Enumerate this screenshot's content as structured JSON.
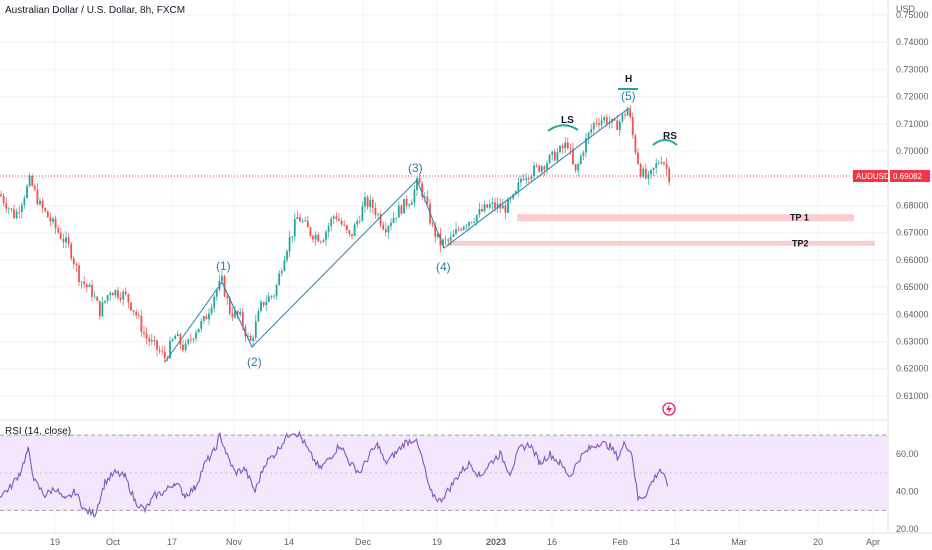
{
  "chart_data": {
    "type": "candlestick",
    "title": "Australian Dollar / U.S. Dollar, 8h, FXCM",
    "symbol": "AUDUSD",
    "last_price": "0.69082",
    "currency": "USD",
    "price_axis": {
      "ticks": [
        "0.75000",
        "0.74000",
        "0.73000",
        "0.72000",
        "0.71000",
        "0.70000",
        "0.69000",
        "0.68000",
        "0.67000",
        "0.66000",
        "0.65000",
        "0.64000",
        "0.63000",
        "0.62000",
        "0.61000"
      ],
      "range": [
        0.603,
        0.7555
      ]
    },
    "time_axis": {
      "ticks": [
        "19",
        "Oct",
        "17",
        "Nov",
        "14",
        "Dec",
        "19",
        "2023",
        "16",
        "Feb",
        "14",
        "Mar",
        "20",
        "Apr"
      ]
    },
    "close_path": [
      [
        0,
        0.684
      ],
      [
        15,
        0.676
      ],
      [
        30,
        0.689
      ],
      [
        40,
        0.68
      ],
      [
        55,
        0.672
      ],
      [
        70,
        0.664
      ],
      [
        80,
        0.653
      ],
      [
        92,
        0.648
      ],
      [
        100,
        0.641
      ],
      [
        110,
        0.649
      ],
      [
        125,
        0.647
      ],
      [
        135,
        0.641
      ],
      [
        145,
        0.632
      ],
      [
        155,
        0.628
      ],
      [
        165,
        0.624
      ],
      [
        175,
        0.632
      ],
      [
        185,
        0.627
      ],
      [
        195,
        0.634
      ],
      [
        205,
        0.638
      ],
      [
        215,
        0.648
      ],
      [
        222,
        0.652
      ],
      [
        230,
        0.641
      ],
      [
        240,
        0.639
      ],
      [
        250,
        0.629
      ],
      [
        262,
        0.644
      ],
      [
        275,
        0.648
      ],
      [
        285,
        0.663
      ],
      [
        298,
        0.676
      ],
      [
        310,
        0.67
      ],
      [
        322,
        0.668
      ],
      [
        335,
        0.677
      ],
      [
        350,
        0.668
      ],
      [
        365,
        0.681
      ],
      [
        372,
        0.68
      ],
      [
        385,
        0.672
      ],
      [
        398,
        0.678
      ],
      [
        412,
        0.683
      ],
      [
        418,
        0.689
      ],
      [
        425,
        0.682
      ],
      [
        432,
        0.672
      ],
      [
        440,
        0.666
      ],
      [
        450,
        0.667
      ],
      [
        462,
        0.673
      ],
      [
        475,
        0.676
      ],
      [
        490,
        0.68
      ],
      [
        505,
        0.679
      ],
      [
        515,
        0.683
      ],
      [
        522,
        0.691
      ],
      [
        535,
        0.693
      ],
      [
        550,
        0.697
      ],
      [
        560,
        0.7
      ],
      [
        568,
        0.703
      ],
      [
        575,
        0.691
      ],
      [
        585,
        0.703
      ],
      [
        595,
        0.711
      ],
      [
        605,
        0.712
      ],
      [
        615,
        0.709
      ],
      [
        622,
        0.712
      ],
      [
        628,
        0.716
      ],
      [
        634,
        0.703
      ],
      [
        640,
        0.693
      ],
      [
        648,
        0.689
      ],
      [
        655,
        0.694
      ],
      [
        662,
        0.698
      ],
      [
        670,
        0.69
      ]
    ],
    "rsi": {
      "label": "RSI (14, close)",
      "ticks": [
        "60.00",
        "40.00",
        "20.00"
      ],
      "range": [
        18,
        78
      ],
      "band": [
        30,
        70
      ],
      "points": [
        [
          0,
          38
        ],
        [
          10,
          42
        ],
        [
          20,
          50
        ],
        [
          28,
          62
        ],
        [
          35,
          45
        ],
        [
          45,
          38
        ],
        [
          55,
          42
        ],
        [
          65,
          35
        ],
        [
          75,
          40
        ],
        [
          85,
          30
        ],
        [
          95,
          28
        ],
        [
          105,
          45
        ],
        [
          115,
          50
        ],
        [
          125,
          48
        ],
        [
          135,
          35
        ],
        [
          145,
          30
        ],
        [
          155,
          38
        ],
        [
          165,
          40
        ],
        [
          175,
          45
        ],
        [
          185,
          38
        ],
        [
          195,
          42
        ],
        [
          205,
          55
        ],
        [
          215,
          62
        ],
        [
          220,
          70
        ],
        [
          228,
          58
        ],
        [
          235,
          50
        ],
        [
          245,
          52
        ],
        [
          255,
          40
        ],
        [
          265,
          55
        ],
        [
          275,
          60
        ],
        [
          285,
          68
        ],
        [
          292,
          72
        ],
        [
          300,
          70
        ],
        [
          310,
          60
        ],
        [
          320,
          52
        ],
        [
          330,
          58
        ],
        [
          340,
          65
        ],
        [
          350,
          55
        ],
        [
          360,
          50
        ],
        [
          370,
          60
        ],
        [
          378,
          65
        ],
        [
          385,
          55
        ],
        [
          395,
          60
        ],
        [
          405,
          66
        ],
        [
          415,
          68
        ],
        [
          422,
          58
        ],
        [
          430,
          40
        ],
        [
          440,
          35
        ],
        [
          450,
          42
        ],
        [
          460,
          50
        ],
        [
          470,
          55
        ],
        [
          480,
          48
        ],
        [
          490,
          55
        ],
        [
          500,
          60
        ],
        [
          510,
          50
        ],
        [
          520,
          63
        ],
        [
          530,
          65
        ],
        [
          540,
          55
        ],
        [
          550,
          60
        ],
        [
          560,
          55
        ],
        [
          570,
          48
        ],
        [
          580,
          58
        ],
        [
          590,
          63
        ],
        [
          600,
          66
        ],
        [
          610,
          64
        ],
        [
          618,
          58
        ],
        [
          625,
          66
        ],
        [
          632,
          60
        ],
        [
          638,
          36
        ],
        [
          645,
          38
        ],
        [
          652,
          45
        ],
        [
          660,
          52
        ],
        [
          668,
          43
        ]
      ]
    },
    "annotations": {
      "waves": [
        "(1)",
        "(2)",
        "(3)",
        "(4)",
        "(5)"
      ],
      "pattern": [
        "LS",
        "H",
        "RS"
      ],
      "targets": [
        {
          "label": "TP 1",
          "low": 0.6742,
          "high": 0.6768
        },
        {
          "label": "TP2",
          "low": 0.6652,
          "high": 0.667
        }
      ]
    },
    "colors": {
      "up": "#26a69a",
      "down": "#ef5350",
      "wave_line": "#2a7fa8",
      "rsi_line": "#7e57c2",
      "rsi_band": "#f3e7fd",
      "tp_zone": "#f8cdd0",
      "price_tag": "#f23645"
    }
  }
}
